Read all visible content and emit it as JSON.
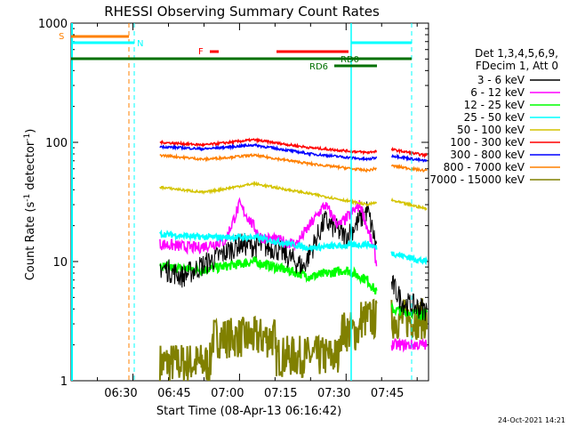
{
  "colors": {
    "black": "#000000",
    "magenta": "#ff00ff",
    "green": "#00ff00",
    "yellow": "#d4c400",
    "orange": "#ff8000",
    "red": "#ff0000",
    "blue": "#0000ff",
    "olive": "#808000",
    "cyan": "#00ffff",
    "darkgreen": "#007000",
    "darkred": "#ff0000"
  },
  "chart_data": {
    "type": "line",
    "title": "RHESSI Observing Summary Count Rates",
    "xlabel": "Start Time (08-Apr-13 06:16:42)",
    "ylabel_main": "Count Rate (s",
    "ylabel_sup1": "-1",
    "ylabel_mid": " detector",
    "ylabel_sup2": "-1",
    "ylabel_end": ")",
    "yscale": "log",
    "ylim": [
      1,
      1000
    ],
    "xlim_minutes": [
      6.3,
      56.6
    ],
    "x_tick_labels": [
      "06:30",
      "06:45",
      "07:00",
      "07:15",
      "07:30",
      "07:45"
    ],
    "y_tick_labels": [
      "1",
      "10",
      "100",
      "1000"
    ],
    "legend_header": [
      "Det 1,3,4,5,6,9,",
      "FDecim 1, Att 0"
    ],
    "legend": [
      "3 - 6 keV",
      "6 - 12 keV",
      "12 - 25 keV",
      "25 - 50 keV",
      "50 - 100 keV",
      "100 - 300 keV",
      "300 - 800 keV",
      "800 - 7000 keV",
      "7000 - 15000 keV"
    ],
    "flag_labels": {
      "s": "S",
      "n": "N",
      "f": "F",
      "rd0": "RD0",
      "rd6": "RD6"
    },
    "timestamp": "24-Oct-2021 14:21",
    "series": [
      {
        "band": "100 - 300 keV",
        "points": [
          [
            18.8,
            100
          ],
          [
            25,
            95
          ],
          [
            32,
            105
          ],
          [
            40,
            90
          ],
          [
            48,
            82
          ],
          [
            51,
            88
          ],
          [
            56,
            78
          ]
        ]
      },
      {
        "band": "300 - 800 keV",
        "points": [
          [
            18.8,
            92
          ],
          [
            25,
            88
          ],
          [
            32,
            95
          ],
          [
            40,
            80
          ],
          [
            48,
            72
          ],
          [
            51,
            78
          ],
          [
            56,
            70
          ]
        ]
      },
      {
        "band": "800 - 7000 keV",
        "points": [
          [
            18.8,
            78
          ],
          [
            25,
            72
          ],
          [
            32,
            78
          ],
          [
            40,
            66
          ],
          [
            48,
            58
          ],
          [
            51,
            64
          ],
          [
            56,
            58
          ]
        ]
      },
      {
        "band": "50 - 100 keV",
        "points": [
          [
            18.8,
            42
          ],
          [
            25,
            38
          ],
          [
            32,
            45
          ],
          [
            40,
            37
          ],
          [
            48,
            30
          ],
          [
            51,
            33
          ],
          [
            56,
            28
          ]
        ]
      }
    ]
  }
}
